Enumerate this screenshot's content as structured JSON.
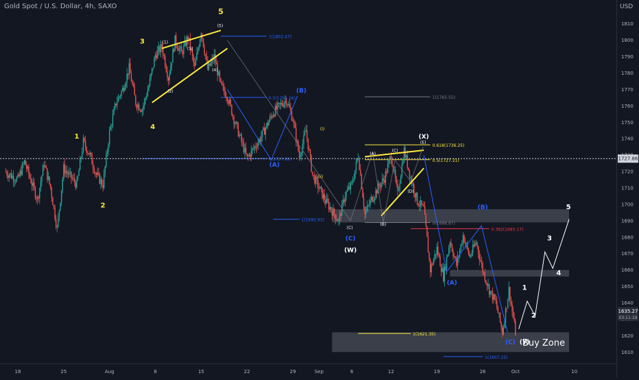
{
  "header": {
    "symbol_title": "Gold Spot / U.S. Dollar, 4h, SAXO",
    "currency": "USD"
  },
  "colors": {
    "background": "#131722",
    "up": "#26a69a",
    "down": "#ef5350",
    "wave_yellow": "#ffeb3b",
    "wave_blue": "#2962ff",
    "wave_white": "#ffffff",
    "zone": "#5d606b",
    "fib_red": "#f23645"
  },
  "chart_data": {
    "type": "candlestick",
    "timeframe": "4h",
    "ylim": [
      1603,
      1822
    ],
    "grid": false,
    "x_ticks": [
      {
        "label": "18",
        "d": 0
      },
      {
        "label": "25",
        "d": 7
      },
      {
        "label": "Aug",
        "d": 14
      },
      {
        "label": "8",
        "d": 21
      },
      {
        "label": "15",
        "d": 28
      },
      {
        "label": "22",
        "d": 35
      },
      {
        "label": "29",
        "d": 42
      },
      {
        "label": "Sep",
        "d": 46
      },
      {
        "label": "6",
        "d": 51
      },
      {
        "label": "12",
        "d": 57
      },
      {
        "label": "19",
        "d": 64
      },
      {
        "label": "26",
        "d": 71
      },
      {
        "label": "Oct",
        "d": 76
      },
      {
        "label": "10",
        "d": 85
      }
    ],
    "y_ticks": [
      1610,
      1620,
      1630,
      1640,
      1650,
      1660,
      1670,
      1680,
      1690,
      1700,
      1710,
      1720,
      1730,
      1740,
      1750,
      1760,
      1770,
      1780,
      1790,
      1800,
      1810
    ],
    "price_path": [
      [
        -2,
        1720
      ],
      [
        0,
        1715
      ],
      [
        1,
        1726
      ],
      [
        3,
        1703
      ],
      [
        4,
        1725
      ],
      [
        5,
        1710
      ],
      [
        6,
        1685
      ],
      [
        7,
        1722
      ],
      [
        9,
        1712
      ],
      [
        10,
        1738
      ],
      [
        11,
        1730
      ],
      [
        12,
        1718
      ],
      [
        13,
        1712
      ],
      [
        14,
        1744
      ],
      [
        15,
        1762
      ],
      [
        16,
        1770
      ],
      [
        17,
        1783
      ],
      [
        18,
        1762
      ],
      [
        19,
        1758
      ],
      [
        20,
        1772
      ],
      [
        21,
        1791
      ],
      [
        22,
        1796
      ],
      [
        23,
        1777
      ],
      [
        24,
        1800
      ],
      [
        25,
        1792
      ],
      [
        26,
        1802
      ],
      [
        27,
        1783
      ],
      [
        28,
        1806
      ],
      [
        29,
        1782
      ],
      [
        30,
        1790
      ],
      [
        31,
        1772
      ],
      [
        32,
        1766
      ],
      [
        33,
        1752
      ],
      [
        35,
        1728
      ],
      [
        37,
        1740
      ],
      [
        39,
        1756
      ],
      [
        41,
        1764
      ],
      [
        42,
        1752
      ],
      [
        43,
        1729
      ],
      [
        44,
        1745
      ],
      [
        45,
        1718
      ],
      [
        47,
        1702
      ],
      [
        49,
        1690
      ],
      [
        50,
        1706
      ],
      [
        51,
        1712
      ],
      [
        52,
        1730
      ],
      [
        53,
        1694
      ],
      [
        54,
        1703
      ],
      [
        55,
        1710
      ],
      [
        56,
        1716
      ],
      [
        57,
        1730
      ],
      [
        58,
        1706
      ],
      [
        59,
        1733
      ],
      [
        60,
        1716
      ],
      [
        61,
        1702
      ],
      [
        62,
        1697
      ],
      [
        63,
        1660
      ],
      [
        64,
        1673
      ],
      [
        65,
        1656
      ],
      [
        66,
        1678
      ],
      [
        67,
        1663
      ],
      [
        68,
        1681
      ],
      [
        69,
        1668
      ],
      [
        70,
        1677
      ],
      [
        71,
        1660
      ],
      [
        72,
        1648
      ],
      [
        73,
        1640
      ],
      [
        74,
        1622
      ],
      [
        75,
        1648
      ],
      [
        76,
        1622
      ]
    ],
    "last_price": {
      "value": "1635.27",
      "countdown": "03:11:19",
      "level": 1635.27
    },
    "reference_price": {
      "value": "1727.86",
      "level": 1727.86
    },
    "zones": [
      {
        "x1": 48,
        "x2": 89,
        "y1": 1689,
        "y2": 1697
      },
      {
        "x1": 66,
        "x2": 89,
        "y1": 1656,
        "y2": 1660
      },
      {
        "x1": 48,
        "x2": 89,
        "y1": 1610,
        "y2": 1622,
        "label": "Buy Zone"
      }
    ],
    "fib_levels": [
      {
        "label": "1(1802.47)",
        "y": 1802.47,
        "x1": 31,
        "x2": 38,
        "color": "wave_blue"
      },
      {
        "label": "0.5(1765.16)",
        "y": 1765.16,
        "x1": 31,
        "x2": 38,
        "color": "wave_blue"
      },
      {
        "label": "0(1727.86)",
        "y": 1727.86,
        "x1": 19,
        "x2": 38,
        "color": "wave_blue"
      },
      {
        "label": "1(1765.55)",
        "y": 1765.55,
        "x1": 53,
        "x2": 63,
        "color": "grey"
      },
      {
        "label": "1(1690.93)",
        "y": 1690.93,
        "x1": 39,
        "x2": 43,
        "color": "wave_blue"
      },
      {
        "label": "0.618(1736.25)",
        "y": 1736.25,
        "x1": 53,
        "x2": 63,
        "color": "wave_yellow"
      },
      {
        "label": "0.5(1727.21)",
        "y": 1727.21,
        "x1": 53,
        "x2": 63,
        "color": "wave_yellow"
      },
      {
        "label": "0(1688.87)",
        "y": 1688.87,
        "x1": 53,
        "x2": 63,
        "color": "grey"
      },
      {
        "label": "0.382(1685.17)",
        "y": 1685.17,
        "x1": 60,
        "x2": 72,
        "color": "fib_red"
      },
      {
        "label": "1(1621.35)",
        "y": 1621.35,
        "x1": 52,
        "x2": 60,
        "color": "wave_yellow"
      },
      {
        "label": "1(1607.25)",
        "y": 1607.25,
        "x1": 65,
        "x2": 71,
        "color": "wave_blue"
      }
    ],
    "wave_labels": [
      {
        "text": "1",
        "d": 9,
        "y": 1740,
        "color": "wave_yellow",
        "size": 10
      },
      {
        "text": "2",
        "d": 13,
        "y": 1698,
        "color": "wave_yellow",
        "size": 10
      },
      {
        "text": "3",
        "d": 19,
        "y": 1798,
        "color": "wave_yellow",
        "size": 10
      },
      {
        "text": "4",
        "d": 20.6,
        "y": 1746,
        "color": "wave_yellow",
        "size": 10
      },
      {
        "text": "5",
        "d": 31,
        "y": 1816,
        "color": "wave_yellow",
        "size": 11
      },
      {
        "text": "(1)",
        "d": 22.5,
        "y": 1798,
        "color": "wave_white",
        "size": 6
      },
      {
        "text": "(2)",
        "d": 23.3,
        "y": 1768,
        "color": "wave_white",
        "size": 6
      },
      {
        "text": "(3)",
        "d": 26.3,
        "y": 1794,
        "color": "wave_white",
        "size": 6
      },
      {
        "text": "(4)",
        "d": 30.1,
        "y": 1781,
        "color": "wave_white",
        "size": 6
      },
      {
        "text": "(5)",
        "d": 30.9,
        "y": 1808,
        "color": "wave_white",
        "size": 6
      },
      {
        "text": "(A)",
        "d": 39.2,
        "y": 1723,
        "color": "wave_blue",
        "size": 9
      },
      {
        "text": "(B)",
        "d": 43.3,
        "y": 1768,
        "color": "wave_blue",
        "size": 9
      },
      {
        "text": "(i)",
        "d": 46.5,
        "y": 1745,
        "color": "wave_yellow",
        "size": 6
      },
      {
        "text": "(ii)",
        "d": 46.2,
        "y": 1716,
        "color": "wave_yellow",
        "size": 6
      },
      {
        "text": "(C)",
        "d": 50.7,
        "y": 1685,
        "color": "wave_white",
        "size": 6
      },
      {
        "text": "(C)",
        "d": 50.8,
        "y": 1678,
        "color": "wave_blue",
        "size": 9
      },
      {
        "text": "(W)",
        "d": 50.8,
        "y": 1671,
        "color": "wave_white",
        "size": 9
      },
      {
        "text": "(A)",
        "d": 54.2,
        "y": 1730,
        "color": "wave_white",
        "size": 6
      },
      {
        "text": "(B)",
        "d": 55.8,
        "y": 1687,
        "color": "wave_white",
        "size": 6
      },
      {
        "text": "(C)",
        "d": 57.6,
        "y": 1732,
        "color": "wave_white",
        "size": 6
      },
      {
        "text": "(D)",
        "d": 60,
        "y": 1707,
        "color": "wave_white",
        "size": 6
      },
      {
        "text": "(E)",
        "d": 61.9,
        "y": 1737,
        "color": "wave_white",
        "size": 6
      },
      {
        "text": "(X)",
        "d": 62,
        "y": 1740,
        "color": "wave_white",
        "size": 9
      },
      {
        "text": "(A)",
        "d": 66.3,
        "y": 1651,
        "color": "wave_blue",
        "size": 9
      },
      {
        "text": "(B)",
        "d": 71,
        "y": 1697,
        "color": "wave_blue",
        "size": 9
      },
      {
        "text": "(C)",
        "d": 75.2,
        "y": 1615,
        "color": "wave_blue",
        "size": 9
      },
      {
        "text": "(Y)",
        "d": 77.4,
        "y": 1615,
        "color": "wave_white",
        "size": 9
      },
      {
        "text": "1",
        "d": 77.4,
        "y": 1648,
        "color": "wave_white",
        "size": 10
      },
      {
        "text": "2",
        "d": 78.8,
        "y": 1631,
        "color": "wave_white",
        "size": 10
      },
      {
        "text": "3",
        "d": 81.2,
        "y": 1678,
        "color": "wave_white",
        "size": 10
      },
      {
        "text": "4",
        "d": 82.6,
        "y": 1657,
        "color": "wave_white",
        "size": 10
      },
      {
        "text": "5",
        "d": 84.1,
        "y": 1697,
        "color": "wave_white",
        "size": 10
      }
    ],
    "projection_path": [
      [
        76.5,
        1624
      ],
      [
        77.8,
        1641
      ],
      [
        79,
        1632
      ],
      [
        80.5,
        1671
      ],
      [
        81.7,
        1661
      ],
      [
        84.2,
        1691
      ]
    ],
    "zigzag_paths": [
      {
        "color": "wave_yellow",
        "points": [
          [
            22,
            1795
          ],
          [
            31,
            1806
          ]
        ]
      },
      {
        "color": "wave_yellow",
        "points": [
          [
            20.5,
            1762
          ],
          [
            32,
            1795
          ]
        ]
      },
      {
        "color": "wave_yellow",
        "points": [
          [
            53,
            1729
          ],
          [
            62,
            1733
          ]
        ]
      },
      {
        "color": "wave_yellow",
        "points": [
          [
            55.5,
            1693
          ],
          [
            62,
            1722
          ]
        ]
      },
      {
        "color": "wave_blue",
        "points": [
          [
            32,
            1770
          ],
          [
            38.7,
            1727
          ],
          [
            42.7,
            1766
          ]
        ]
      },
      {
        "color": "wave_blue",
        "points": [
          [
            62,
            1730
          ],
          [
            65.5,
            1659
          ],
          [
            70.8,
            1687
          ],
          [
            74.8,
            1622
          ]
        ]
      },
      {
        "color": "grey",
        "points": [
          [
            32,
            1800
          ],
          [
            50.8,
            1690
          ],
          [
            54.2,
            1732
          ],
          [
            55.8,
            1689
          ],
          [
            57.6,
            1727
          ],
          [
            60,
            1714
          ],
          [
            61.9,
            1735
          ]
        ]
      }
    ]
  }
}
